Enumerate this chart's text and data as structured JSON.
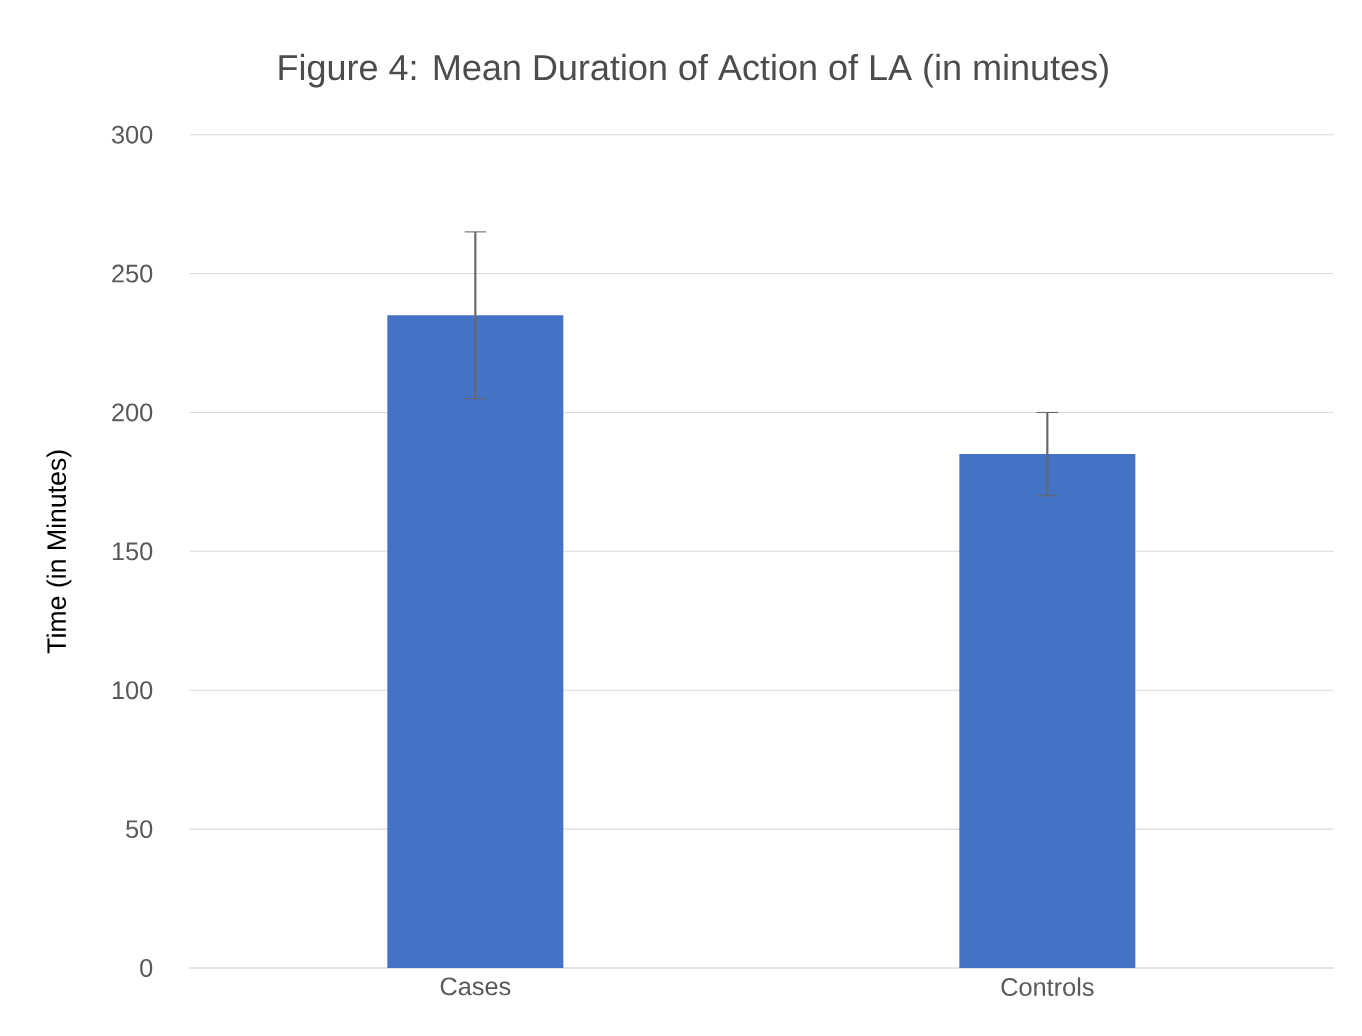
{
  "chart_data": {
    "type": "bar",
    "title": "Figure 4: Mean Duration of Action of LA (in minutes)",
    "ylabel": "Time (in Minutes)",
    "categories": [
      "Cases",
      "Controls"
    ],
    "values": [
      235,
      185
    ],
    "errors": [
      30,
      15
    ],
    "color": "#4472c4",
    "ylim": [
      0,
      300
    ],
    "yticks": [
      0,
      50,
      100,
      150,
      200,
      250,
      300
    ],
    "grid": "y"
  }
}
